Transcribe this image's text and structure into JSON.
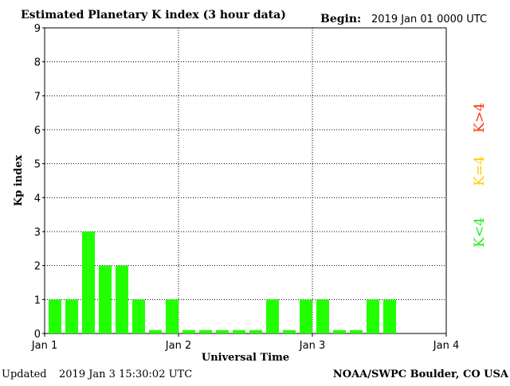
{
  "header": {
    "title": "Estimated Planetary K index (3 hour data)",
    "begin_label": "Begin:",
    "begin_value": "2019 Jan 01 0000 UTC"
  },
  "footer": {
    "updated_label": "Updated",
    "updated_value": "2019 Jan  3 15:30:02 UTC",
    "source": "NOAA/SWPC Boulder, CO USA"
  },
  "legend": [
    {
      "label": "K<4",
      "color": "#22ee22"
    },
    {
      "label": "K=4",
      "color": "#ffcc00"
    },
    {
      "label": "K>4",
      "color": "#ff3311"
    }
  ],
  "chart_data": {
    "type": "bar",
    "xlabel": "Universal Time",
    "ylabel": "Kp index",
    "ylim": [
      0,
      9
    ],
    "yticks": [
      0,
      1,
      2,
      3,
      4,
      5,
      6,
      7,
      8,
      9
    ],
    "xticks": [
      "Jan 1",
      "Jan 2",
      "Jan 3",
      "Jan 4"
    ],
    "grid": true,
    "bar_color": "#22ff00",
    "values": [
      1,
      1,
      3,
      2,
      2,
      1,
      0.1,
      1,
      0.1,
      0.1,
      0.1,
      0.1,
      0.1,
      1,
      0.1,
      1,
      1,
      0.1,
      0.1,
      1,
      1
    ]
  }
}
